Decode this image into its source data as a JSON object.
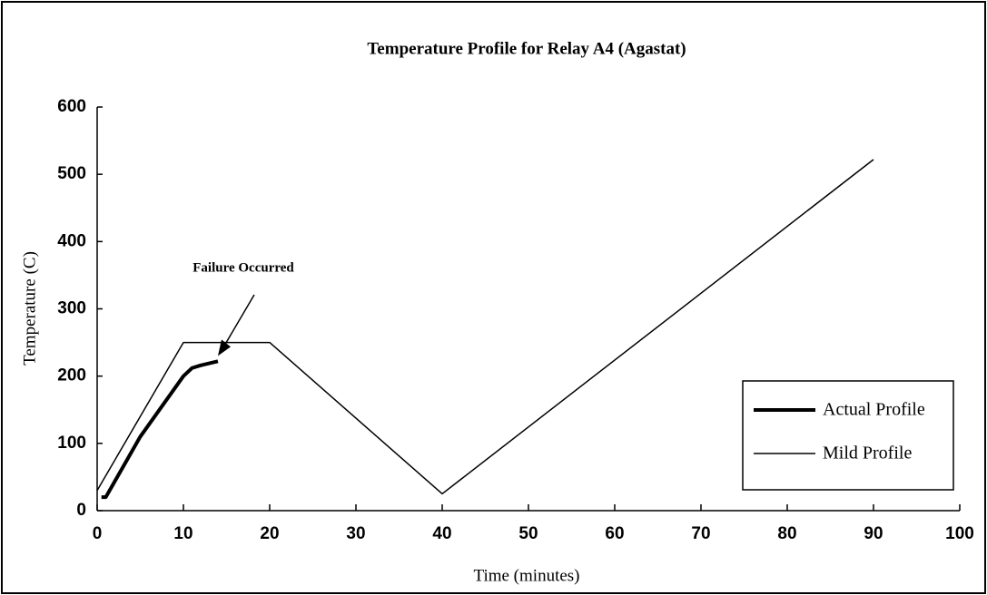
{
  "chart_data": {
    "type": "line",
    "title": "Temperature Profile for Relay A4 (Agastat)",
    "xlabel": "Time (minutes)",
    "ylabel": "Temperature (C)",
    "series": [
      {
        "name": "Actual Profile",
        "color": "#000000",
        "width": 4,
        "x": [
          0.5,
          1,
          5,
          10,
          11,
          12,
          14
        ],
        "values": [
          20,
          20,
          110,
          200,
          212,
          216,
          222
        ]
      },
      {
        "name": "Mild Profile",
        "color": "#000000",
        "width": 1.5,
        "x": [
          0,
          10,
          20,
          40,
          90
        ],
        "values": [
          30,
          250,
          250,
          25,
          522
        ]
      }
    ],
    "xlim": [
      0,
      100
    ],
    "xticks": [
      0,
      10,
      20,
      30,
      40,
      50,
      60,
      70,
      80,
      90,
      100
    ],
    "ylim": [
      0,
      600
    ],
    "yticks": [
      0,
      100,
      200,
      300,
      400,
      500,
      600
    ],
    "annotation": {
      "text": "Failure Occurred",
      "x": 14,
      "y": 222
    },
    "legend": "lower right"
  }
}
